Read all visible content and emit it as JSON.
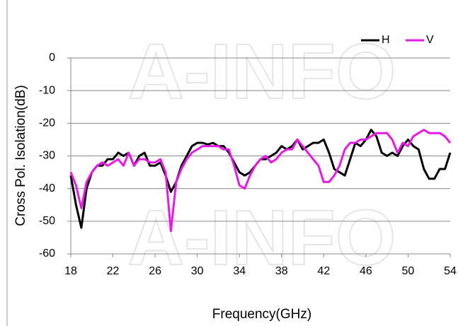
{
  "chart_data": {
    "type": "line",
    "watermark": "A-INFO",
    "xlabel": "Frequency(GHz)",
    "ylabel": "Cross Pol. Isolation(dB)",
    "x": [
      18,
      18.5,
      19,
      19.5,
      20,
      20.5,
      21,
      21.5,
      22,
      22.5,
      23,
      23.5,
      24,
      24.5,
      25,
      25.5,
      26,
      26.5,
      27,
      27.5,
      28,
      28.5,
      29,
      29.5,
      30,
      30.5,
      31,
      31.5,
      32,
      32.5,
      33,
      33.5,
      34,
      34.5,
      35,
      35.5,
      36,
      36.5,
      37,
      37.5,
      38,
      38.5,
      39,
      39.5,
      40,
      40.5,
      41,
      41.5,
      42,
      42.5,
      43,
      43.5,
      44,
      44.5,
      45,
      45.5,
      46,
      46.5,
      47,
      47.5,
      48,
      48.5,
      49,
      49.5,
      50,
      50.5,
      51,
      51.5,
      52,
      52.5,
      53,
      53.5,
      54
    ],
    "series": [
      {
        "name": "H",
        "color": "#000000",
        "values": [
          -36,
          -45,
          -52,
          -40,
          -35,
          -33,
          -33,
          -31,
          -31,
          -29,
          -30,
          -29,
          -33,
          -30,
          -29,
          -33,
          -33,
          -32,
          -36,
          -41,
          -38,
          -33,
          -30,
          -27,
          -26,
          -26,
          -26.5,
          -26,
          -27,
          -27,
          -29,
          -32,
          -35,
          -36,
          -35,
          -33,
          -31,
          -31,
          -30,
          -29,
          -27,
          -28,
          -27,
          -25,
          -28,
          -27,
          -26,
          -26,
          -25,
          -29,
          -34,
          -35,
          -36,
          -31,
          -26,
          -27,
          -25,
          -22,
          -24,
          -29,
          -30,
          -29,
          -30,
          -27,
          -25,
          -27,
          -28,
          -34,
          -37,
          -37,
          -34,
          -34,
          -29
        ]
      },
      {
        "name": "V",
        "color": "#e619e6",
        "values": [
          -35,
          -39,
          -46,
          -38,
          -35,
          -33,
          -32,
          -33,
          -32,
          -31,
          -33,
          -29,
          -33,
          -31,
          -31,
          -32,
          -32,
          -31,
          -35,
          -53,
          -38,
          -34,
          -31,
          -29,
          -28,
          -27,
          -27,
          -27,
          -27,
          -28,
          -28,
          -33,
          -39,
          -40,
          -36,
          -33,
          -31,
          -30,
          -32,
          -31,
          -29,
          -28,
          -28,
          -25,
          -27,
          -29,
          -31,
          -33,
          -38,
          -38,
          -36,
          -33,
          -28,
          -26,
          -26,
          -25,
          -25,
          -24,
          -23,
          -23,
          -23,
          -25,
          -29,
          -26,
          -27,
          -24,
          -23,
          -22,
          -23,
          -23,
          -23,
          -24,
          -26
        ]
      }
    ],
    "xlim": [
      18,
      54
    ],
    "xticks": [
      18,
      22,
      26,
      30,
      34,
      38,
      42,
      46,
      50,
      54
    ],
    "ylim": [
      -60,
      0
    ],
    "yticks": [
      0,
      -10,
      -20,
      -30,
      -40,
      -50,
      -60
    ],
    "grid": true,
    "legend": "top-right"
  }
}
